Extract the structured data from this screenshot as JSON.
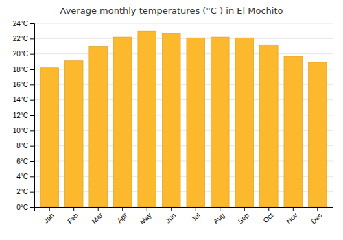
{
  "chart_data": {
    "type": "bar",
    "title": "Average monthly temperatures (°C ) in El Mochito",
    "categories": [
      "Jan",
      "Feb",
      "Mar",
      "Apr",
      "May",
      "Jun",
      "Jul",
      "Aug",
      "Sep",
      "Oct",
      "Nov",
      "Dec"
    ],
    "values": [
      18.2,
      19.1,
      21.0,
      22.2,
      23.0,
      22.7,
      22.1,
      22.2,
      22.1,
      21.2,
      19.7,
      18.9
    ],
    "color": "#FDB92E",
    "ylim": [
      0,
      24
    ],
    "yticks": [
      {
        "value": 0,
        "label": "0°C"
      },
      {
        "value": 2,
        "label": "2°C"
      },
      {
        "value": 4,
        "label": "4°C"
      },
      {
        "value": 6,
        "label": "6°C"
      },
      {
        "value": 8,
        "label": "8°C"
      },
      {
        "value": 10,
        "label": "10°C"
      },
      {
        "value": 12,
        "label": "12°C"
      },
      {
        "value": 14,
        "label": "14°C"
      },
      {
        "value": 16,
        "label": "16°C"
      },
      {
        "value": 18,
        "label": "18°C"
      },
      {
        "value": 20,
        "label": "20°C"
      },
      {
        "value": 22,
        "label": "22°C"
      },
      {
        "value": 24,
        "label": "24°C"
      }
    ],
    "grid": true
  }
}
